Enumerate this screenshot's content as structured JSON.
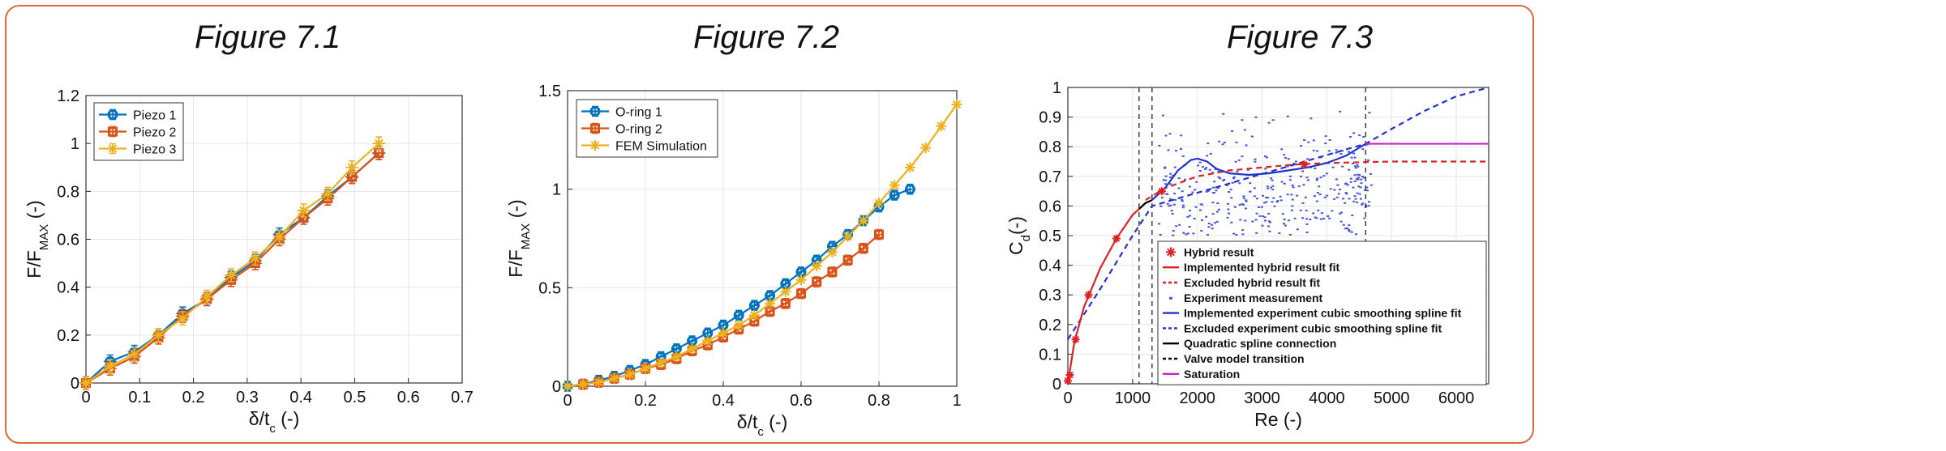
{
  "panel_titles": [
    "Figure 7.1",
    "Figure 7.2",
    "Figure 7.3"
  ],
  "colors": {
    "frame": "#e0663a",
    "blue": "#0072bd",
    "orange": "#d95319",
    "yellow": "#edb120",
    "red": "#e02020",
    "navy": "#2233cc",
    "magenta": "#cc22cc",
    "scatter": "#4455dd"
  },
  "chart_data": [
    {
      "type": "line",
      "title": "Figure 7.1",
      "xlabel": "δ/t",
      "xlabel_sub": "c",
      "xlabel_unit": " (-)",
      "ylabel": "F/F",
      "ylabel_sub": "MAX",
      "ylabel_unit": " (-)",
      "xlim": [
        0,
        0.7
      ],
      "ylim": [
        0,
        1.2
      ],
      "xticks": [
        0,
        0.1,
        0.2,
        0.3,
        0.4,
        0.5,
        0.6,
        0.7
      ],
      "xtick_labels": [
        "0",
        "0.1",
        "0.2",
        "0.3",
        "0.4",
        "0.5",
        "0.6",
        "0.7"
      ],
      "yticks": [
        0,
        0.2,
        0.4,
        0.6,
        0.8,
        1,
        1.2
      ],
      "ytick_labels": [
        "0",
        "0.2",
        "0.4",
        "0.6",
        "0.8",
        "1",
        "1.2"
      ],
      "grid": true,
      "legend": "top-left",
      "series": [
        {
          "name": "Piezo 1",
          "color": "#0072bd",
          "marker": "circle-errorbar",
          "x": [
            0,
            0.045,
            0.09,
            0.135,
            0.18,
            0.225,
            0.27,
            0.315,
            0.36,
            0.405,
            0.45,
            0.495,
            0.545
          ],
          "y": [
            0,
            0.09,
            0.13,
            0.2,
            0.29,
            0.35,
            0.44,
            0.51,
            0.62,
            0.69,
            0.78,
            0.86,
            0.96
          ]
        },
        {
          "name": "Piezo 2",
          "color": "#d95319",
          "marker": "square-errorbar",
          "x": [
            0,
            0.045,
            0.09,
            0.135,
            0.18,
            0.225,
            0.27,
            0.315,
            0.36,
            0.405,
            0.45,
            0.495,
            0.545
          ],
          "y": [
            0,
            0.06,
            0.11,
            0.19,
            0.28,
            0.35,
            0.43,
            0.5,
            0.6,
            0.69,
            0.77,
            0.86,
            0.96
          ]
        },
        {
          "name": "Piezo 3",
          "color": "#edb120",
          "marker": "star-errorbar",
          "x": [
            0,
            0.045,
            0.09,
            0.135,
            0.18,
            0.225,
            0.27,
            0.315,
            0.36,
            0.405,
            0.45,
            0.495,
            0.545
          ],
          "y": [
            0,
            0.07,
            0.12,
            0.2,
            0.27,
            0.36,
            0.45,
            0.52,
            0.61,
            0.72,
            0.79,
            0.9,
            1.0
          ]
        }
      ]
    },
    {
      "type": "line",
      "title": "Figure 7.2",
      "xlabel": "δ/t",
      "xlabel_sub": "c",
      "xlabel_unit": " (-)",
      "ylabel": "F/F",
      "ylabel_sub": "MAX",
      "ylabel_unit": " (-)",
      "xlim": [
        0,
        1
      ],
      "ylim": [
        0,
        1.5
      ],
      "xticks": [
        0,
        0.2,
        0.4,
        0.6,
        0.8,
        1
      ],
      "xtick_labels": [
        "0",
        "0.2",
        "0.4",
        "0.6",
        "0.8",
        "1"
      ],
      "yticks": [
        0,
        0.5,
        1,
        1.5
      ],
      "ytick_labels": [
        "0",
        "0.5",
        "1",
        "1.5"
      ],
      "grid": true,
      "legend": "top-left",
      "series": [
        {
          "name": "O-ring 1",
          "color": "#0072bd",
          "marker": "circle-errorbar",
          "x": [
            0,
            0.04,
            0.08,
            0.12,
            0.16,
            0.2,
            0.24,
            0.28,
            0.32,
            0.36,
            0.4,
            0.44,
            0.48,
            0.52,
            0.56,
            0.6,
            0.64,
            0.68,
            0.72,
            0.76,
            0.8,
            0.84,
            0.88
          ],
          "y": [
            0,
            0.01,
            0.03,
            0.05,
            0.08,
            0.11,
            0.15,
            0.19,
            0.23,
            0.27,
            0.31,
            0.36,
            0.41,
            0.46,
            0.52,
            0.58,
            0.64,
            0.71,
            0.77,
            0.84,
            0.91,
            0.97,
            1.0
          ]
        },
        {
          "name": "O-ring 2",
          "color": "#d95319",
          "marker": "square-errorbar",
          "x": [
            0.04,
            0.08,
            0.12,
            0.16,
            0.2,
            0.24,
            0.28,
            0.32,
            0.36,
            0.4,
            0.44,
            0.48,
            0.52,
            0.56,
            0.6,
            0.64,
            0.68,
            0.72,
            0.76,
            0.8
          ],
          "y": [
            0.01,
            0.02,
            0.04,
            0.06,
            0.09,
            0.11,
            0.14,
            0.18,
            0.21,
            0.25,
            0.29,
            0.33,
            0.38,
            0.42,
            0.47,
            0.53,
            0.58,
            0.64,
            0.7,
            0.77
          ]
        },
        {
          "name": "FEM Simulation",
          "color": "#edb120",
          "marker": "star",
          "x": [
            0,
            0.04,
            0.08,
            0.12,
            0.16,
            0.2,
            0.24,
            0.28,
            0.32,
            0.36,
            0.4,
            0.44,
            0.48,
            0.52,
            0.56,
            0.6,
            0.64,
            0.68,
            0.72,
            0.76,
            0.8,
            0.84,
            0.88,
            0.92,
            0.96,
            1.0
          ],
          "y": [
            0,
            0.01,
            0.02,
            0.04,
            0.06,
            0.09,
            0.12,
            0.15,
            0.19,
            0.23,
            0.27,
            0.31,
            0.36,
            0.42,
            0.48,
            0.54,
            0.61,
            0.68,
            0.76,
            0.84,
            0.93,
            1.02,
            1.11,
            1.21,
            1.32,
            1.43
          ]
        }
      ]
    },
    {
      "type": "line",
      "title": "Figure 7.3",
      "xlabel": "Re (-)",
      "ylabel": "C",
      "ylabel_sub": "d",
      "ylabel_unit": "(-)",
      "xlim": [
        0,
        6500
      ],
      "ylim": [
        0,
        1
      ],
      "xticks": [
        0,
        1000,
        2000,
        3000,
        4000,
        5000,
        6000
      ],
      "xtick_labels": [
        "0",
        "1000",
        "2000",
        "3000",
        "4000",
        "5000",
        "6000"
      ],
      "yticks": [
        0,
        0.1,
        0.2,
        0.3,
        0.4,
        0.5,
        0.6,
        0.7,
        0.8,
        0.9,
        1
      ],
      "ytick_labels": [
        "0",
        "0.1",
        "0.2",
        "0.3",
        "0.4",
        "0.5",
        "0.6",
        "0.7",
        "0.8",
        "0.9",
        "1"
      ],
      "grid": true,
      "legend": "bottom-right",
      "vlines": [
        1100,
        1300,
        4600
      ],
      "hybrid_points": {
        "x": [
          0,
          30,
          120,
          320,
          750,
          1450,
          3650
        ],
        "y": [
          0.01,
          0.03,
          0.15,
          0.3,
          0.49,
          0.65,
          0.74
        ]
      },
      "implemented_hybrid_fit": {
        "x": [
          0,
          100,
          250,
          500,
          750,
          1000,
          1200
        ],
        "y": [
          0.0,
          0.14,
          0.26,
          0.39,
          0.49,
          0.57,
          0.61
        ]
      },
      "excluded_hybrid_fit": {
        "x": [
          1200,
          1500,
          2000,
          2500,
          3000,
          3500,
          4000,
          5000,
          6500
        ],
        "y": [
          0.62,
          0.66,
          0.7,
          0.72,
          0.73,
          0.74,
          0.745,
          0.75,
          0.75
        ]
      },
      "implemented_spline_fit": {
        "x": [
          1300,
          1500,
          1700,
          1900,
          2000,
          2150,
          2300,
          2500,
          2800,
          3100,
          3400,
          3700,
          4000,
          4300,
          4600
        ],
        "y": [
          0.62,
          0.66,
          0.72,
          0.755,
          0.76,
          0.75,
          0.725,
          0.71,
          0.705,
          0.71,
          0.72,
          0.73,
          0.745,
          0.77,
          0.81
        ]
      },
      "excluded_spline_fit": {
        "x": [
          0,
          500,
          1000,
          1300,
          4600,
          5000,
          5500,
          6000,
          6500
        ],
        "y": [
          0.15,
          0.32,
          0.5,
          0.6,
          0.81,
          0.86,
          0.92,
          0.97,
          1.0
        ]
      },
      "quadratic_connection": {
        "x": [
          1100,
          1200,
          1300
        ],
        "y": [
          0.59,
          0.61,
          0.62
        ]
      },
      "saturation": {
        "x": [
          4600,
          6500
        ],
        "y": [
          0.81,
          0.81
        ]
      },
      "experiment_cloud": {
        "x_range": [
          1400,
          4700
        ],
        "y_range": [
          0.5,
          1.0
        ],
        "count": 420
      },
      "legend_entries": [
        {
          "label": "Hybrid result",
          "style": "star",
          "color": "#e02020"
        },
        {
          "label": "Implemented hybrid result fit",
          "style": "solid",
          "color": "#e02020"
        },
        {
          "label": "Excluded hybrid result fit",
          "style": "dashed",
          "color": "#e02020"
        },
        {
          "label": "Experiment measurement",
          "style": "dot",
          "color": "#4455dd"
        },
        {
          "label": "Implemented experiment cubic smoothing spline fit",
          "style": "solid",
          "color": "#2233cc"
        },
        {
          "label": "Excluded experiment cubic smoothing spline fit",
          "style": "dashed",
          "color": "#2233cc"
        },
        {
          "label": "Quadratic spline connection",
          "style": "solid",
          "color": "#000000"
        },
        {
          "label": "Valve model transition",
          "style": "dashed",
          "color": "#000000"
        },
        {
          "label": "Saturation",
          "style": "solid",
          "color": "#cc22cc"
        }
      ]
    }
  ]
}
